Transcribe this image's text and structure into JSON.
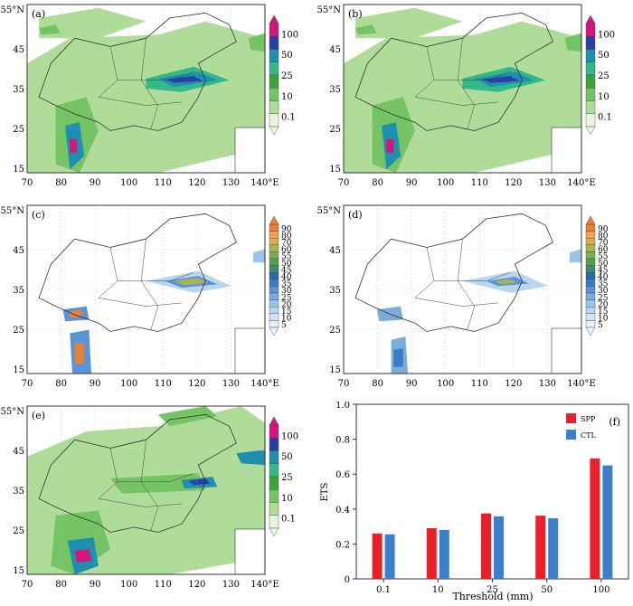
{
  "panels": [
    {
      "id": "a",
      "label": "(a)",
      "scale": "rain"
    },
    {
      "id": "b",
      "label": "(b)",
      "scale": "rain"
    },
    {
      "id": "c",
      "label": "(c)",
      "scale": "diff"
    },
    {
      "id": "d",
      "label": "(d)",
      "scale": "diff"
    },
    {
      "id": "e",
      "label": "(e)",
      "scale": "rain"
    }
  ],
  "map_axis": {
    "lat_ticks": [
      "55°N",
      "45",
      "35",
      "25",
      "15"
    ],
    "lon_ticks": [
      "70",
      "80",
      "90",
      "100",
      "110",
      "120",
      "130",
      "140°E"
    ]
  },
  "colorbars": {
    "rain": {
      "labels": [
        "100",
        "50",
        "25",
        "10",
        "0.1"
      ],
      "colors": [
        "#d6147a",
        "#2b3fa2",
        "#1f8fb0",
        "#33b888",
        "#3ea13a",
        "#74c464",
        "#b0dc9a",
        "#e8f5e0"
      ]
    },
    "diff": {
      "labels": [
        "90",
        "80",
        "70",
        "60",
        "55",
        "50",
        "45",
        "40",
        "35",
        "30",
        "25",
        "20",
        "15",
        "10",
        "5"
      ],
      "colors": [
        "#e8803a",
        "#f0a050",
        "#d8b050",
        "#a8b450",
        "#78b050",
        "#50a050",
        "#3c8c6c",
        "#2c6c9c",
        "#3a7cc4",
        "#5a94d4",
        "#7aacdc",
        "#9ac4e8",
        "#b8d6ee",
        "#d2e4f4",
        "#e8f0fa"
      ]
    }
  },
  "chart_data": {
    "type": "bar",
    "panel_label": "(f)",
    "categories": [
      "0.1",
      "10",
      "25",
      "50",
      "100"
    ],
    "series": [
      {
        "name": "SPP",
        "color": "#e8202a",
        "values": [
          0.26,
          0.29,
          0.375,
          0.362,
          0.69
        ]
      },
      {
        "name": "CTL",
        "color": "#3a80c8",
        "values": [
          0.255,
          0.28,
          0.358,
          0.347,
          0.65
        ]
      }
    ],
    "xlabel": "Threshold (mm)",
    "ylabel": "ETS",
    "ylim": [
      0,
      1.0
    ],
    "yticks": [
      "0",
      "0.2",
      "0.4",
      "0.6",
      "0.8",
      "1.0"
    ],
    "legend": "top-right"
  }
}
